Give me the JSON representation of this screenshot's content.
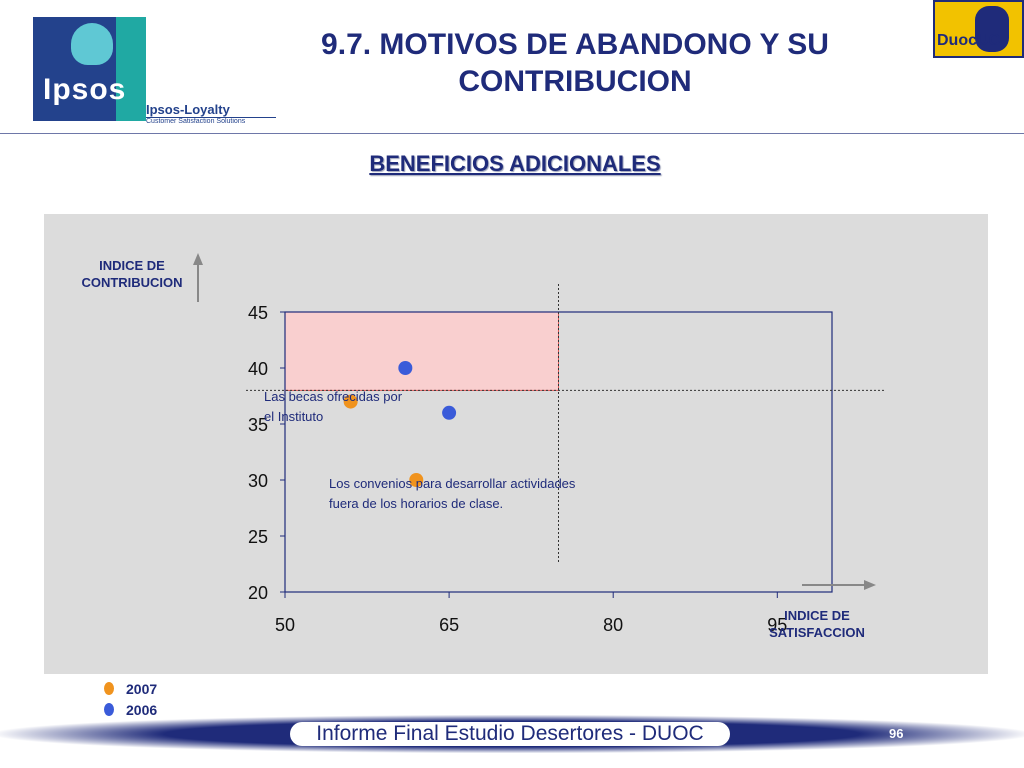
{
  "header": {
    "ipsos_logo_text": "Ipsos",
    "loyalty_title": "Ipsos-Loyalty",
    "loyalty_tagline": "Customer Satisfaction Solutions",
    "title": "9.7. MOTIVOS DE ABANDONO Y SU CONTRIBUCION",
    "duoc_logo_text": "DuocUC"
  },
  "colors": {
    "navy": "#1f2b7a",
    "series_2007": "#f0931e",
    "series_2006": "#3a5bd9",
    "highlight_fill": "#f9cfcf",
    "highlight_stroke": "#e05a5a",
    "panel_bg": "#dcdcdc"
  },
  "chart_data": {
    "type": "scatter",
    "title": "BENEFICIOS ADICIONALES",
    "ylabel": "INDICE DE CONTRIBUCION",
    "xlabel": "INDICE DE SATISFACCION",
    "xlim": [
      50,
      100
    ],
    "ylim": [
      20,
      45
    ],
    "x_ticks": [
      50,
      65,
      80,
      95
    ],
    "y_ticks": [
      20,
      25,
      30,
      35,
      40,
      45
    ],
    "reference_lines": {
      "x": 75,
      "y": 38
    },
    "highlight_region": {
      "x": [
        50,
        75
      ],
      "y": [
        38,
        45
      ]
    },
    "grid": false,
    "legend_position": "bottom-left",
    "series": [
      {
        "name": "2007",
        "color": "#f0931e",
        "points": [
          {
            "x": 56,
            "y": 37
          },
          {
            "x": 62,
            "y": 30
          }
        ]
      },
      {
        "name": "2006",
        "color": "#3a5bd9",
        "points": [
          {
            "x": 61,
            "y": 40
          },
          {
            "x": 65,
            "y": 36
          }
        ]
      }
    ],
    "annotations": [
      {
        "lines": [
          "Las becas ofrecidas por",
          "el Instituto"
        ]
      },
      {
        "lines": [
          "Los convenios para desarrollar actividades",
          "fuera de los horarios de clase."
        ]
      }
    ]
  },
  "footer": {
    "text": "Informe Final Estudio Desertores - DUOC",
    "page": "96"
  }
}
